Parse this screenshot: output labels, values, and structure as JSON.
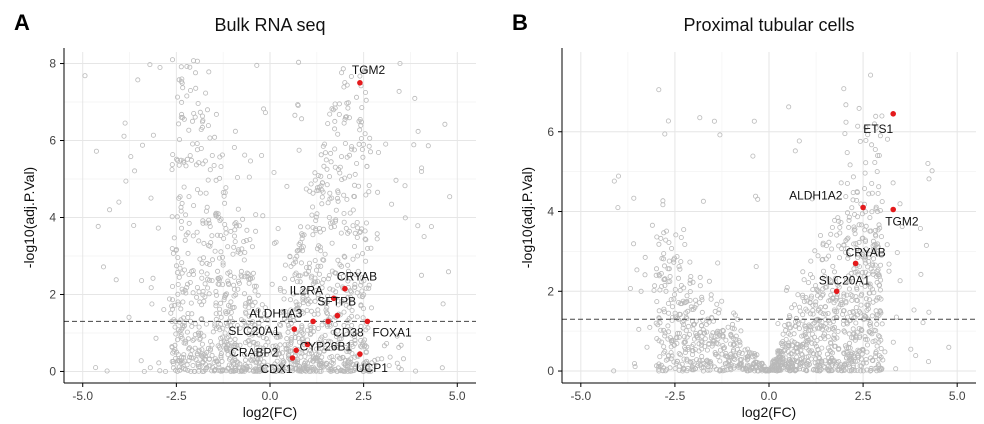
{
  "chart_data": [
    {
      "type": "scatter",
      "panel_label": "A",
      "title": "Bulk RNA seq",
      "xlabel": "log2(FC)",
      "ylabel": "-log10(adj.P.Val)",
      "xlim": [
        -5.5,
        5.5
      ],
      "ylim": [
        -0.3,
        8.3
      ],
      "x_ticks": [
        "-5.0",
        "-2.5",
        "0.0",
        "2.5",
        "5.0"
      ],
      "y_ticks": [
        "0",
        "2",
        "4",
        "6",
        "8"
      ],
      "threshold": 1.3,
      "grid": true,
      "highlight_color": "#e41a1c",
      "background_color": "#b9b9b9",
      "background_points": {
        "n": 1400,
        "y_max": 8.1,
        "x_max": 5.2
      },
      "highlighted_genes": [
        {
          "label": "TGM2",
          "x": 2.4,
          "y": 7.5
        },
        {
          "label": "CRYAB",
          "x": 2.0,
          "y": 2.15
        },
        {
          "label": "IL2RA",
          "x": 1.7,
          "y": 1.9
        },
        {
          "label": "SFTPB",
          "x": 1.8,
          "y": 1.45
        },
        {
          "label": "ALDH1A3",
          "x": 1.15,
          "y": 1.3
        },
        {
          "label": "CD38",
          "x": 1.55,
          "y": 1.3
        },
        {
          "label": "FOXA1",
          "x": 2.6,
          "y": 1.3
        },
        {
          "label": "SLC20A1",
          "x": 0.65,
          "y": 1.1
        },
        {
          "label": "CYP26B1",
          "x": 1.0,
          "y": 0.7
        },
        {
          "label": "CRABP2",
          "x": 0.7,
          "y": 0.55
        },
        {
          "label": "CDX1",
          "x": 0.6,
          "y": 0.35
        },
        {
          "label": "UCP1",
          "x": 2.4,
          "y": 0.45
        }
      ]
    },
    {
      "type": "scatter",
      "panel_label": "B",
      "title": "Proximal tubular cells",
      "xlabel": "log2(FC)",
      "ylabel": "-log10(adj.P.Val)",
      "xlim": [
        -5.5,
        5.5
      ],
      "ylim": [
        -0.3,
        8.0
      ],
      "x_ticks": [
        "-5.0",
        "-2.5",
        "0.0",
        "2.5",
        "5.0"
      ],
      "y_ticks": [
        "0",
        "2",
        "4",
        "6"
      ],
      "threshold": 1.3,
      "grid": true,
      "highlight_color": "#e41a1c",
      "background_color": "#b9b9b9",
      "background_points": {
        "n": 1300,
        "y_max": 7.5,
        "x_max": 5.2
      },
      "highlighted_genes": [
        {
          "label": "ETS1",
          "x": 3.3,
          "y": 6.45
        },
        {
          "label": "ALDH1A2",
          "x": 2.5,
          "y": 4.1
        },
        {
          "label": "TGM2",
          "x": 3.3,
          "y": 4.05
        },
        {
          "label": "CRYAB",
          "x": 2.3,
          "y": 2.7
        },
        {
          "label": "SLC20A1",
          "x": 1.8,
          "y": 2.0
        }
      ]
    }
  ]
}
